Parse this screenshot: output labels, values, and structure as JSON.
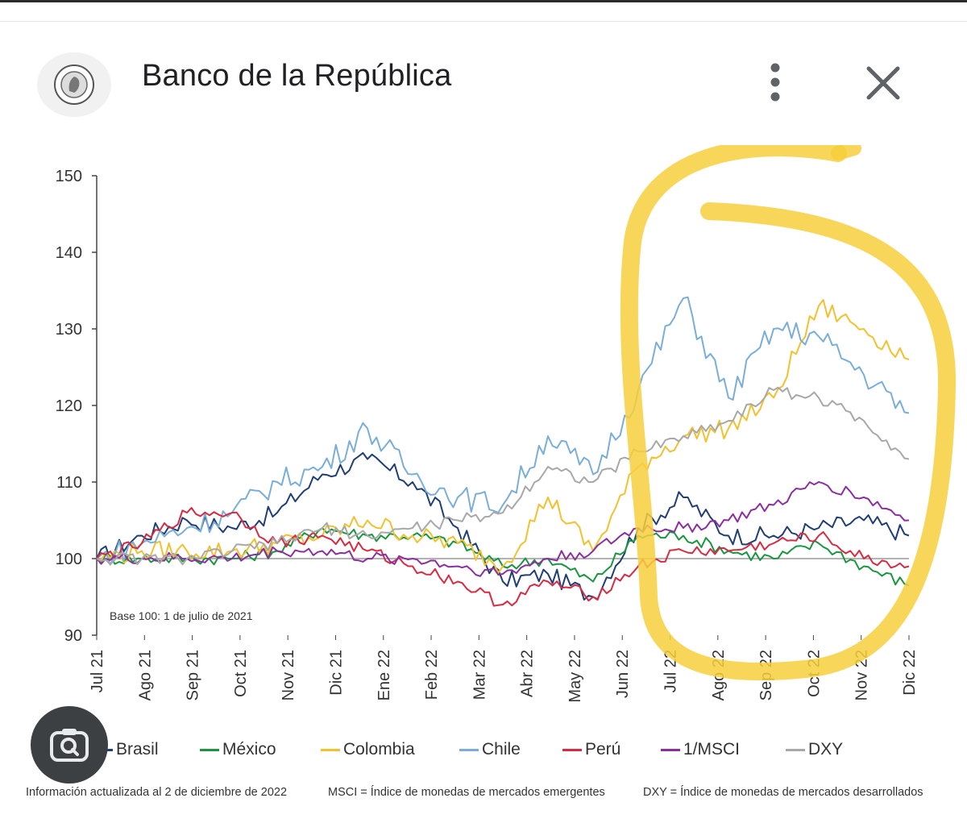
{
  "header": {
    "title": "Banco de la República",
    "logo_icon": "banco-republica-seal-icon",
    "menu_icon": "more-vert-icon",
    "close_icon": "close-icon"
  },
  "lens_icon": "camera-search-icon",
  "chart_data": {
    "type": "line",
    "base_note": "Base 100: 1 de julio de 2021",
    "ylim": [
      90,
      150
    ],
    "yticks": [
      90,
      100,
      110,
      120,
      130,
      140,
      150
    ],
    "x_tick_labels": [
      "Jul 21",
      "Ago 21",
      "Sep 21",
      "Oct 21",
      "Nov 21",
      "Dic 21",
      "Ene 22",
      "Feb 22",
      "Mar 22",
      "Abr 22",
      "May 22",
      "Jun 22",
      "Jul 22",
      "Ago 22",
      "Sep 22",
      "Oct 22",
      "Nov 22",
      "Dic 22"
    ],
    "reference_line": 100,
    "series": [
      {
        "name": "Brasil",
        "color": "#1f3f74",
        "values": [
          100,
          103,
          105,
          104,
          106,
          111,
          113,
          110,
          104,
          97,
          98,
          95,
          104,
          108,
          103,
          103,
          104,
          105,
          103
        ]
      },
      {
        "name": "México",
        "color": "#1a9641",
        "values": [
          100,
          100,
          100,
          100,
          101,
          104,
          103,
          103,
          102,
          99,
          100,
          97,
          103,
          103,
          101,
          100,
          102,
          99,
          96.5
        ]
      },
      {
        "name": "Colombia",
        "color": "#f2c12e",
        "values": [
          100,
          101,
          101,
          101,
          102,
          103,
          105,
          103,
          102,
          99,
          108,
          101,
          112,
          116,
          117,
          121,
          133,
          130,
          126
        ]
      },
      {
        "name": "Chile",
        "color": "#7aaed8",
        "values": [
          100,
          102,
          104,
          106,
          110,
          112,
          117,
          111,
          108,
          107,
          116,
          111,
          122,
          134,
          121,
          130,
          129,
          124,
          119
        ]
      },
      {
        "name": "Perú",
        "color": "#d62b43",
        "values": [
          100,
          102,
          106,
          106,
          102,
          103,
          101,
          99,
          97,
          94,
          97,
          95,
          99,
          101,
          101,
          102,
          103,
          100,
          99
        ]
      },
      {
        "name": "1/MSCI",
        "color": "#8b2fa0",
        "values": [
          100,
          100,
          100,
          100,
          101,
          101,
          100,
          100,
          99,
          98,
          100,
          101,
          104,
          104,
          105,
          107,
          110,
          108,
          105
        ]
      },
      {
        "name": "DXY",
        "color": "#a8a8a8",
        "values": [
          100,
          100,
          100,
          101,
          102,
          104,
          103,
          104,
          105,
          106,
          112,
          110,
          114,
          116,
          118,
          122,
          121,
          118,
          113
        ]
      }
    ]
  },
  "footnotes": {
    "updated": "Información actualizada al 2 de diciembre de 2022",
    "msci": "MSCI = Índice de monedas de mercados emergentes",
    "dxy": "DXY = Índice de monedas de mercados desarrollados"
  }
}
